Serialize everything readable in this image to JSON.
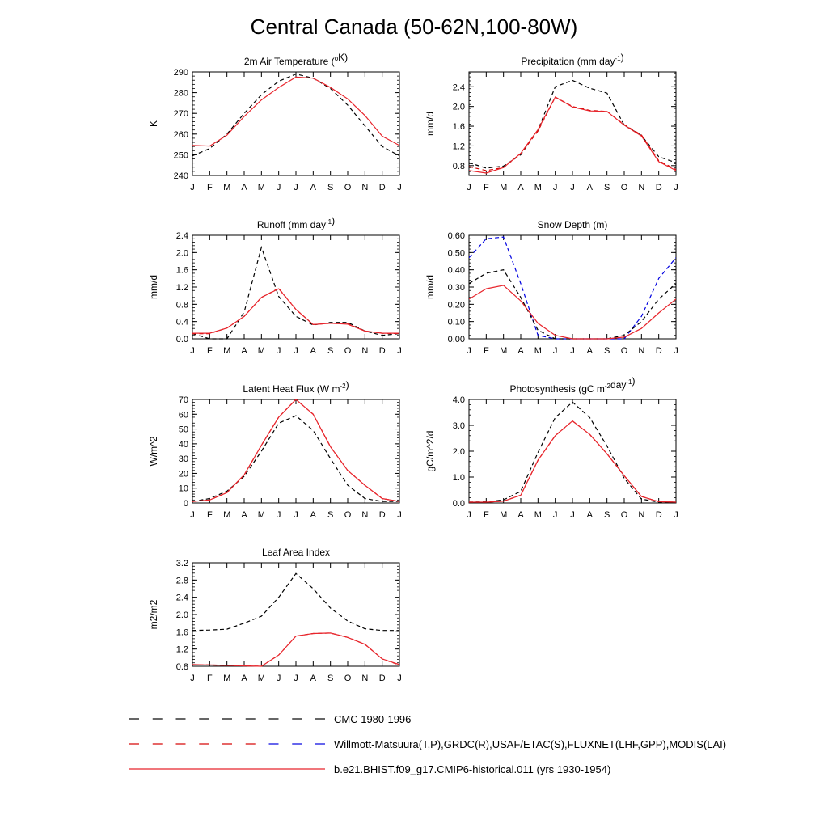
{
  "title": "Central Canada (50-62N,100-80W)",
  "months": [
    "J",
    "F",
    "M",
    "A",
    "M",
    "J",
    "J",
    "A",
    "S",
    "O",
    "N",
    "D",
    "J"
  ],
  "colors": {
    "cmc": "#000000",
    "obs": "#d40000",
    "obs_snow": "#0000e0",
    "model": "#e8252c"
  },
  "legend": [
    {
      "label": "CMC 1980-1996",
      "style": "dash",
      "colors": [
        "#000000"
      ]
    },
    {
      "label": "Willmott-Matsuura(T,P),GRDC(R),USAF/ETAC(S),FLUXNET(LHF,GPP),MODIS(LAI)",
      "style": "dash",
      "colors": [
        "#d40000",
        "#d40000",
        "#d40000",
        "#d40000",
        "#d40000",
        "#d40000",
        "#0000e0",
        "#0000e0",
        "#0000e0"
      ]
    },
    {
      "label": "b.e21.BHIST.f09_g17.CMIP6-historical.011 (yrs 1930-1954)",
      "style": "solid",
      "colors": [
        "#e8252c"
      ]
    }
  ],
  "chart_data": [
    {
      "id": "temp",
      "type": "line",
      "title": "2m Air Temperature (",
      "title_sup": "o",
      "title_tail": "K)",
      "ylabel": "K",
      "ylim": [
        240,
        290
      ],
      "yticks": [
        "240",
        "250",
        "260",
        "270",
        "280",
        "290"
      ],
      "ytick_values": [
        240,
        250,
        260,
        270,
        280,
        290
      ],
      "xtick_labels": [
        "J",
        "F",
        "M",
        "A",
        "M",
        "J",
        "J",
        "A",
        "S",
        "O",
        "N",
        "D",
        "J"
      ],
      "series": [
        {
          "name": "CMC 1980-1996",
          "style": "dash",
          "color": "#000000",
          "values": [
            249.5,
            253,
            260,
            270,
            279,
            285.5,
            289,
            287,
            282,
            274,
            264,
            254,
            249.5
          ]
        },
        {
          "name": "b.e21.BHIST.f09_g17.CMIP6-historical.011 (yrs 1930-1954)",
          "style": "solid",
          "color": "#e8252c",
          "values": [
            254.5,
            254.2,
            259.5,
            268.5,
            276.5,
            282.5,
            287.5,
            287,
            282.5,
            277,
            269,
            259,
            254.5
          ]
        }
      ]
    },
    {
      "id": "precip",
      "type": "line",
      "title": "Precipitation (mm day",
      "title_sup": "-1",
      "title_tail": ")",
      "ylabel": "mm/d",
      "ylim": [
        0.6,
        2.7
      ],
      "yticks": [
        "0.8",
        "1.2",
        "1.6",
        "2.0",
        "2.4"
      ],
      "ytick_values": [
        0.8,
        1.2,
        1.6,
        2.0,
        2.4
      ],
      "xtick_labels": [
        "J",
        "F",
        "M",
        "A",
        "M",
        "J",
        "J",
        "A",
        "S",
        "O",
        "N",
        "D",
        "J"
      ],
      "series": [
        {
          "name": "CMC 1980-1996",
          "style": "dash",
          "color": "#000000",
          "values": [
            0.86,
            0.75,
            0.79,
            1.02,
            1.52,
            2.4,
            2.53,
            2.37,
            2.27,
            1.62,
            1.41,
            0.98,
            0.86
          ]
        },
        {
          "name": "Willmott-Matsuura",
          "style": "dash",
          "color": "#d40000",
          "values": [
            0.78,
            0.7,
            0.76,
            1.04,
            1.5,
            2.19,
            2.0,
            1.92,
            1.9,
            1.63,
            1.42,
            0.9,
            0.72
          ]
        },
        {
          "name": "b.e21.BHIST.f09_g17.CMIP6-historical.011 (yrs 1930-1954)",
          "style": "solid",
          "color": "#e8252c",
          "values": [
            0.7,
            0.65,
            0.76,
            1.05,
            1.53,
            2.19,
            1.99,
            1.91,
            1.9,
            1.62,
            1.4,
            0.88,
            0.7
          ]
        }
      ]
    },
    {
      "id": "runoff",
      "type": "line",
      "title": "Runoff (mm day",
      "title_sup": "-1",
      "title_tail": ")",
      "ylabel": "mm/d",
      "ylim": [
        0,
        2.4
      ],
      "yticks": [
        "0.0",
        "0.4",
        "0.8",
        "1.2",
        "1.6",
        "2.0",
        "2.4"
      ],
      "ytick_values": [
        0,
        0.4,
        0.8,
        1.2,
        1.6,
        2.0,
        2.4
      ],
      "xtick_labels": [
        "J",
        "F",
        "M",
        "A",
        "M",
        "J",
        "J",
        "A",
        "S",
        "O",
        "N",
        "D",
        "J"
      ],
      "series": [
        {
          "name": "CMC 1980-1996",
          "style": "dash",
          "color": "#000000",
          "values": [
            0.12,
            0.0,
            0.0,
            0.62,
            2.12,
            0.98,
            0.52,
            0.32,
            0.38,
            0.38,
            0.18,
            0.08,
            0.12
          ]
        },
        {
          "name": "GRDC",
          "style": "dash",
          "color": "#d40000",
          "values": [
            0.12,
            0.12,
            0.25,
            0.52,
            0.96,
            1.17,
            0.68,
            0.33,
            0.36,
            0.35,
            0.18,
            0.13,
            0.12
          ]
        },
        {
          "name": "b.e21.BHIST.f09_g17.CMIP6-historical.011 (yrs 1930-1954)",
          "style": "solid",
          "color": "#e8252c",
          "values": [
            0.13,
            0.13,
            0.25,
            0.52,
            0.96,
            1.16,
            0.68,
            0.33,
            0.36,
            0.34,
            0.18,
            0.13,
            0.13
          ]
        }
      ]
    },
    {
      "id": "snow",
      "type": "line",
      "title": "Snow Depth (m)",
      "title_sup": "",
      "title_tail": "",
      "ylabel": "mm/d",
      "ylim": [
        0,
        0.6
      ],
      "yticks": [
        "0.00",
        "0.10",
        "0.20",
        "0.30",
        "0.40",
        "0.50",
        "0.60"
      ],
      "ytick_values": [
        0,
        0.1,
        0.2,
        0.3,
        0.4,
        0.5,
        0.6
      ],
      "xtick_labels": [
        "J",
        "F",
        "M",
        "A",
        "M",
        "J",
        "J",
        "A",
        "S",
        "O",
        "N",
        "D",
        "J"
      ],
      "series": [
        {
          "name": "USAF/ETAC",
          "style": "dash",
          "color": "#0000e0",
          "values": [
            0.47,
            0.58,
            0.59,
            0.32,
            0.02,
            0.0,
            0.0,
            0.0,
            0.0,
            0.0,
            0.13,
            0.35,
            0.47
          ]
        },
        {
          "name": "CMC 1980-1996",
          "style": "dash",
          "color": "#000000",
          "values": [
            0.32,
            0.38,
            0.4,
            0.24,
            0.05,
            0.0,
            0.0,
            0.0,
            0.0,
            0.02,
            0.1,
            0.23,
            0.32
          ]
        },
        {
          "name": "b.e21.BHIST.f09_g17.CMIP6-historical.011 (yrs 1930-1954)",
          "style": "solid",
          "color": "#e8252c",
          "values": [
            0.23,
            0.29,
            0.31,
            0.22,
            0.09,
            0.02,
            0.0,
            0.0,
            0.0,
            0.01,
            0.06,
            0.15,
            0.23
          ]
        }
      ]
    },
    {
      "id": "lhf",
      "type": "line",
      "title": "Latent Heat Flux (W m",
      "title_sup": "-2",
      "title_tail": ")",
      "ylabel": "W/m^2",
      "ylim": [
        0,
        70
      ],
      "yticks": [
        "0",
        "10",
        "20",
        "30",
        "40",
        "50",
        "60",
        "70"
      ],
      "ytick_values": [
        0,
        10,
        20,
        30,
        40,
        50,
        60,
        70
      ],
      "xtick_labels": [
        "J",
        "F",
        "M",
        "A",
        "M",
        "J",
        "J",
        "A",
        "S",
        "O",
        "N",
        "D",
        "J"
      ],
      "series": [
        {
          "name": "CMC 1980-1996",
          "style": "dash",
          "color": "#000000",
          "values": [
            1,
            3,
            8,
            18,
            35,
            54,
            59,
            49,
            30,
            12,
            3,
            1,
            1
          ]
        },
        {
          "name": "FLUXNET",
          "style": "dash",
          "color": "#d40000",
          "values": [
            1,
            2,
            7,
            19,
            39,
            58,
            70,
            60,
            38,
            22,
            12,
            3,
            1
          ]
        },
        {
          "name": "b.e21.BHIST.f09_g17.CMIP6-historical.011 (yrs 1930-1954)",
          "style": "solid",
          "color": "#e8252c",
          "values": [
            1,
            2,
            7,
            19,
            39,
            58,
            70,
            60,
            38,
            22,
            12,
            3,
            1
          ]
        }
      ]
    },
    {
      "id": "gpp",
      "type": "line",
      "title": "Photosynthesis (gC m",
      "title_sup": "-2",
      "title_tail": "day",
      "title_sup2": "-1",
      "title_tail2": ")",
      "ylabel": "gC/m^2/d",
      "ylim": [
        0,
        4
      ],
      "yticks": [
        "0.0",
        "1.0",
        "2.0",
        "3.0",
        "4.0"
      ],
      "ytick_values": [
        0,
        1,
        2,
        3,
        4
      ],
      "xtick_labels": [
        "J",
        "F",
        "M",
        "A",
        "M",
        "J",
        "J",
        "A",
        "S",
        "O",
        "N",
        "D",
        "J"
      ],
      "series": [
        {
          "name": "CMC 1980-1996",
          "style": "dash",
          "color": "#000000",
          "values": [
            0.03,
            0.04,
            0.12,
            0.45,
            1.95,
            3.3,
            3.9,
            3.3,
            2.2,
            0.95,
            0.15,
            0.03,
            0.03
          ]
        },
        {
          "name": "FLUXNET",
          "style": "dash",
          "color": "#d40000",
          "values": [
            0.03,
            0.03,
            0.07,
            0.3,
            1.65,
            2.6,
            3.17,
            2.65,
            1.9,
            1.05,
            0.25,
            0.05,
            0.03
          ]
        },
        {
          "name": "b.e21.BHIST.f09_g17.CMIP6-historical.011 (yrs 1930-1954)",
          "style": "solid",
          "color": "#e8252c",
          "values": [
            0.03,
            0.03,
            0.07,
            0.3,
            1.65,
            2.6,
            3.17,
            2.65,
            1.9,
            1.05,
            0.25,
            0.05,
            0.03
          ]
        }
      ]
    },
    {
      "id": "lai",
      "type": "line",
      "title": "Leaf Area Index",
      "title_sup": "",
      "title_tail": "",
      "ylabel": "m2/m2",
      "ylim": [
        0.8,
        3.2
      ],
      "yticks": [
        "0.8",
        "1.2",
        "1.6",
        "2.0",
        "2.4",
        "2.8",
        "3.2"
      ],
      "ytick_values": [
        0.8,
        1.2,
        1.6,
        2.0,
        2.4,
        2.8,
        3.2
      ],
      "xtick_labels": [
        "J",
        "F",
        "M",
        "A",
        "M",
        "J",
        "J",
        "A",
        "S",
        "O",
        "N",
        "D",
        "J"
      ],
      "series": [
        {
          "name": "CMC 1980-1996",
          "style": "dash",
          "color": "#000000",
          "values": [
            1.63,
            1.64,
            1.66,
            1.8,
            1.96,
            2.4,
            2.95,
            2.6,
            2.15,
            1.85,
            1.67,
            1.63,
            1.63
          ]
        },
        {
          "name": "MODIS",
          "style": "dash",
          "color": "#d40000",
          "values": [
            0.83,
            0.83,
            0.82,
            0.81,
            0.8,
            1.06,
            1.5,
            1.56,
            1.57,
            1.47,
            1.31,
            0.97,
            0.83
          ]
        },
        {
          "name": "b.e21.BHIST.f09_g17.CMIP6-historical.011 (yrs 1930-1954)",
          "style": "solid",
          "color": "#e8252c",
          "values": [
            0.84,
            0.83,
            0.82,
            0.81,
            0.8,
            1.06,
            1.5,
            1.56,
            1.57,
            1.47,
            1.31,
            0.97,
            0.84
          ]
        }
      ]
    }
  ]
}
